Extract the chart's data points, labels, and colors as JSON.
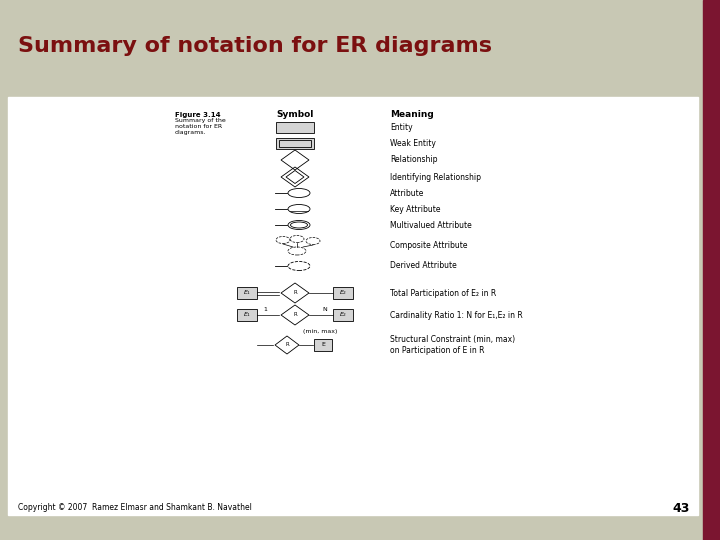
{
  "title": "Summary of notation for ER diagrams",
  "title_color": "#7B1010",
  "title_bg_color": "#C8C8B4",
  "main_bg_color": "#FFFFFF",
  "slide_bg_color": "#C8C8B4",
  "border_color": "#7B1530",
  "figure_label": "Figure 3.14",
  "figure_desc": "Summary of the\nnotation for ER\ndiagrams.",
  "col_symbol": "Symbol",
  "col_meaning": "Meaning",
  "copyright": "Copyright © 2007  Ramez Elmasr and Shamkant B. Navathel",
  "page_number": "43",
  "meanings": [
    "Entity",
    "Weak Entity",
    "Relationship",
    "Identifying Relationship",
    "Attribute",
    "Key Attribute",
    "Multivalued Attribute",
    "Composite Attribute",
    "Derived Attribute",
    "Total Participation of E₂ in R",
    "Cardinality Ratio 1: N for E₁,E₂ in R",
    "Structural Constraint (min, max)\non Participation of E in R"
  ]
}
